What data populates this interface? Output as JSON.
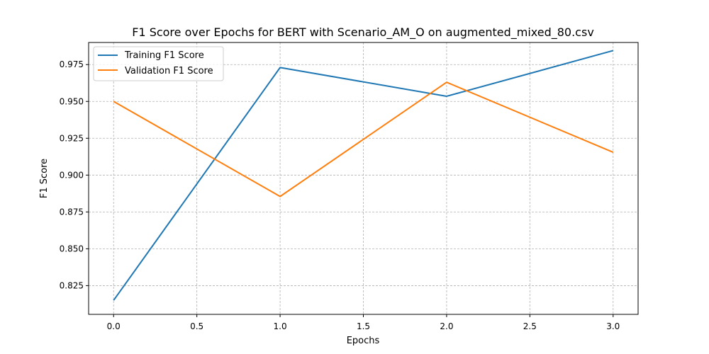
{
  "chart_data": {
    "type": "line",
    "title": "F1 Score over Epochs for BERT with Scenario_AM_O on augmented_mixed_80.csv",
    "xlabel": "Epochs",
    "ylabel": "F1 Score",
    "x": [
      0,
      1,
      2,
      3
    ],
    "xlim": [
      -0.15,
      3.15
    ],
    "ylim": [
      0.8055,
      0.99
    ],
    "x_ticks": [
      0.0,
      0.5,
      1.0,
      1.5,
      2.0,
      2.5,
      3.0
    ],
    "x_tick_labels": [
      "0.0",
      "0.5",
      "1.0",
      "1.5",
      "2.0",
      "2.5",
      "3.0"
    ],
    "y_ticks": [
      0.825,
      0.85,
      0.875,
      0.9,
      0.925,
      0.95,
      0.975
    ],
    "y_tick_labels": [
      "0.825",
      "0.850",
      "0.875",
      "0.900",
      "0.925",
      "0.950",
      "0.975"
    ],
    "grid": true,
    "legend_position": "top-left",
    "series": [
      {
        "name": "Training F1 Score",
        "color": "#1f77b4",
        "values": [
          0.815,
          0.973,
          0.9535,
          0.9845
        ]
      },
      {
        "name": "Validation F1 Score",
        "color": "#ff7f0e",
        "values": [
          0.95,
          0.8855,
          0.963,
          0.9155
        ]
      }
    ]
  }
}
